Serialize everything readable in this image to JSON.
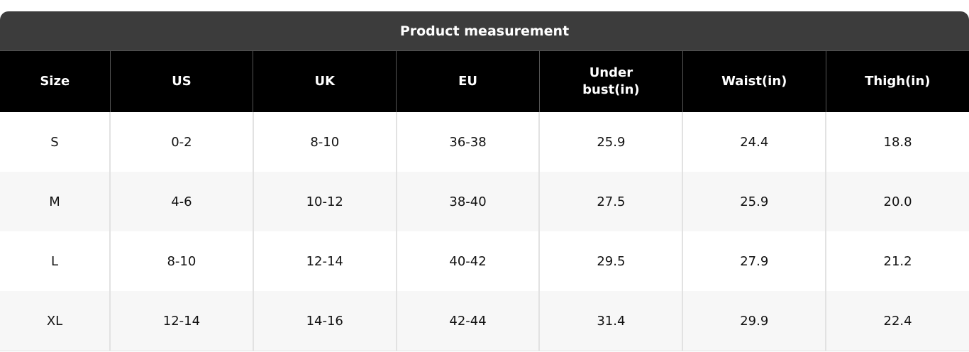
{
  "title": "Product measurement",
  "table": {
    "header": [
      "Size",
      "US",
      "UK",
      "EU",
      "Under bust(in)",
      "Waist(in)",
      "Thigh(in)"
    ],
    "rows": [
      [
        "S",
        "0-2",
        "8-10",
        "36-38",
        "25.9",
        "24.4",
        "18.8"
      ],
      [
        "M",
        "4-6",
        "10-12",
        "38-40",
        "27.5",
        "25.9",
        "20.0"
      ],
      [
        "L",
        "8-10",
        "12-14",
        "40-42",
        "29.5",
        "27.9",
        "21.2"
      ],
      [
        "XL",
        "12-14",
        "14-16",
        "42-44",
        "31.4",
        "29.9",
        "22.4"
      ]
    ]
  }
}
